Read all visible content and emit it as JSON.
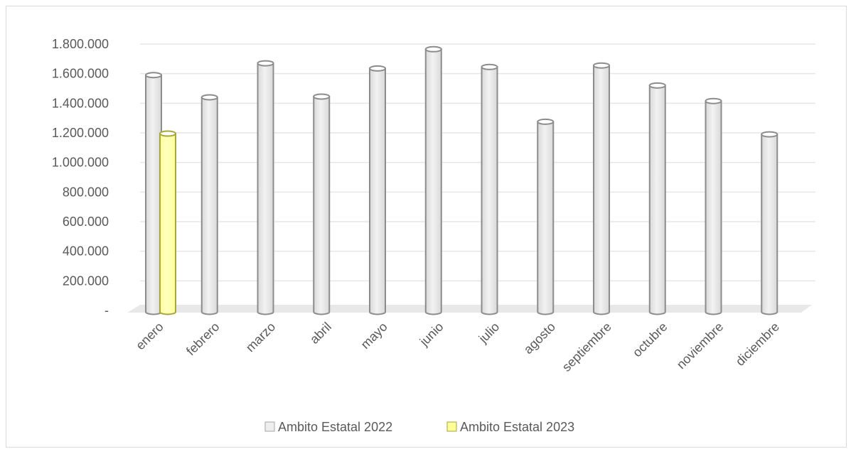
{
  "chart_data": {
    "type": "bar",
    "style": "3d-cylinder",
    "categories": [
      "enero",
      "febrero",
      "marzo",
      "abril",
      "mayo",
      "junio",
      "julio",
      "agosto",
      "septiembre",
      "octubre",
      "noviembre",
      "diciembre"
    ],
    "series": [
      {
        "name": "Ambito Estatal 2022",
        "color": "#d9d9d9",
        "stroke": "#8c8c8c",
        "values": [
          1590000,
          1440000,
          1670000,
          1445000,
          1635000,
          1765000,
          1645000,
          1275000,
          1655000,
          1520000,
          1415000,
          1190000
        ]
      },
      {
        "name": "Ambito Estatal 2023",
        "color": "#ffff99",
        "stroke": "#a6a63a",
        "values": [
          1195000,
          null,
          null,
          null,
          null,
          null,
          null,
          null,
          null,
          null,
          null,
          null
        ]
      }
    ],
    "yticks": [
      "-",
      "200.000",
      "400.000",
      "600.000",
      "800.000",
      "1.000.000",
      "1.200.000",
      "1.400.000",
      "1.600.000",
      "1.800.000"
    ],
    "ylim": [
      0,
      1800000
    ],
    "grid": true,
    "legend_position": "bottom"
  }
}
